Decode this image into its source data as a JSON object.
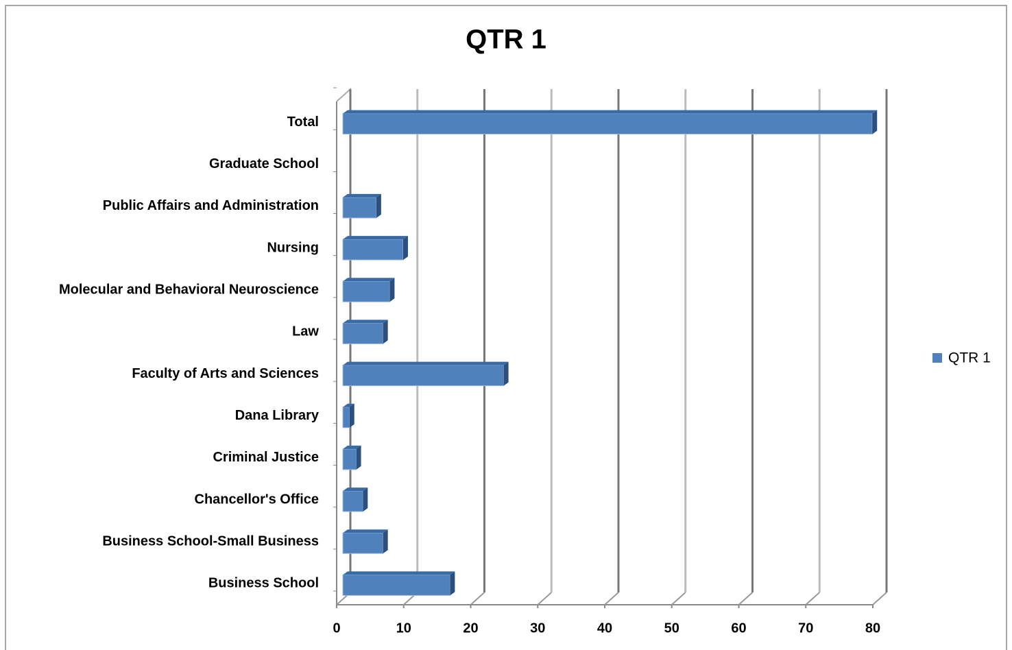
{
  "chart_data": {
    "type": "bar",
    "orientation": "horizontal",
    "title": "QTR 1",
    "categories": [
      "Total",
      "Graduate School",
      "Public Affairs and Administration",
      "Nursing",
      "Molecular and Behavioral Neuroscience",
      "Law",
      "Faculty of Arts and Sciences",
      "Dana Library",
      "Criminal Justice",
      "Chancellor's Office",
      "Business School-Small  Business",
      "Business School"
    ],
    "series": [
      {
        "name": "QTR 1",
        "color": "#4f81bd",
        "values": [
          79,
          0,
          5,
          9,
          7,
          6,
          24,
          1,
          2,
          3,
          6,
          16
        ]
      }
    ],
    "xlim": [
      0,
      80
    ],
    "xticks": [
      0,
      10,
      20,
      30,
      40,
      50,
      60,
      70,
      80
    ],
    "grid": true,
    "legend": "right"
  }
}
